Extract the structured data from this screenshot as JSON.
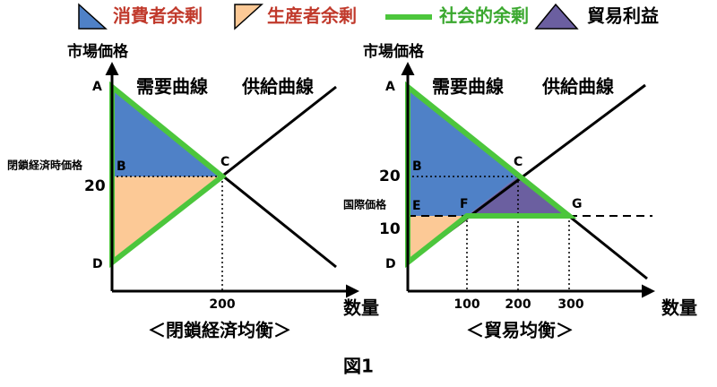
{
  "legend": [
    {
      "label": "消費者余剰"
    },
    {
      "label": "生産者余剰"
    },
    {
      "label": "社会的余剰"
    },
    {
      "label": "貿易利益"
    }
  ],
  "left": {
    "y_label": "市場価格",
    "x_label": "数量",
    "demand_label": "需要曲線",
    "supply_label": "供給曲線",
    "points": {
      "A": "A",
      "B": "B",
      "C": "C",
      "D": "D"
    },
    "price_label": "閉鎖経済時価格",
    "price": 20,
    "quantity": 200,
    "title": "＜閉鎖経済均衡＞"
  },
  "right": {
    "y_label": "市場価格",
    "x_label": "数量",
    "demand_label": "需要曲線",
    "supply_label": "供給曲線",
    "points": {
      "A": "A",
      "B": "B",
      "C": "C",
      "D": "D",
      "E": "E",
      "F": "F",
      "G": "G"
    },
    "price_high": 20,
    "world_price_label": "国際価格",
    "world_price": 10,
    "quantities": [
      100,
      200,
      300
    ],
    "title": "＜貿易均衡＞"
  },
  "caption": "図1"
}
